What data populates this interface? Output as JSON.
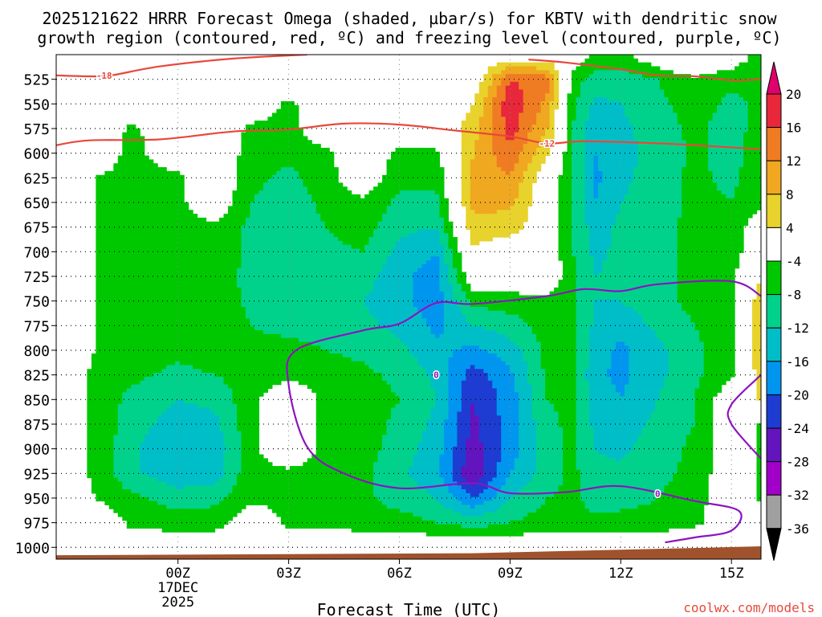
{
  "chart_data": {
    "type": "heatmap",
    "title": {
      "line1": "2025121622 HRRR Forecast Omega (shaded, µbar/s) for KBTV with dendritic snow",
      "line2": "growth region (contoured, red, ºC) and freezing level (contoured, purple, ºC)"
    },
    "xlabel": "Forecast Time (UTC)",
    "credit": "coolwx.com/models",
    "x_axis": {
      "range_hours": [
        -3.3,
        15.8
      ],
      "ticks": [
        {
          "hour": 0,
          "label": "00Z",
          "sub1": "17DEC",
          "sub2": "2025"
        },
        {
          "hour": 3,
          "label": "03Z"
        },
        {
          "hour": 6,
          "label": "06Z"
        },
        {
          "hour": 9,
          "label": "09Z"
        },
        {
          "hour": 12,
          "label": "12Z"
        },
        {
          "hour": 15,
          "label": "15Z"
        }
      ]
    },
    "y_axis": {
      "range_hpa": [
        500,
        1012
      ],
      "levels": [
        525,
        550,
        575,
        600,
        625,
        650,
        675,
        700,
        725,
        750,
        775,
        800,
        825,
        850,
        875,
        900,
        925,
        950,
        975,
        1000
      ]
    },
    "colorbar": {
      "labels": [
        20,
        16,
        12,
        8,
        4,
        -4,
        -8,
        -12,
        -16,
        -20,
        -24,
        -28,
        -32,
        -36
      ],
      "colors": [
        "#e0006e",
        "#e8283a",
        "#ef7c22",
        "#f0a820",
        "#e8d22c",
        "#ffffff",
        "#00c800",
        "#00d28c",
        "#00bec8",
        "#0096f0",
        "#1e3cd2",
        "#6414be",
        "#a000c8",
        "#a0a0a0",
        "#000000"
      ]
    },
    "omega_pressure_levels_hpa": [
      500,
      525,
      550,
      575,
      600,
      625,
      650,
      675,
      700,
      725,
      750,
      775,
      800,
      825,
      850,
      875,
      900,
      925,
      950,
      975,
      1000
    ],
    "omega_columns": [
      {
        "hour": -3.3,
        "values": [
          0,
          0,
          0,
          0,
          0,
          0,
          0,
          0,
          0,
          0,
          0,
          0,
          0,
          0,
          0,
          0,
          0,
          0,
          0,
          0,
          0
        ]
      },
      {
        "hour": -2.0,
        "values": [
          0,
          0,
          0,
          0,
          0,
          -5,
          -5,
          -5,
          -5,
          -5,
          -5,
          -5,
          -5,
          -6,
          -6,
          -6,
          -6,
          -6,
          -5,
          0,
          0
        ]
      },
      {
        "hour": -1.3,
        "values": [
          0,
          0,
          0,
          -5,
          -6,
          -6,
          -6,
          -6,
          -6,
          -6,
          -6,
          -6,
          -6,
          -7,
          -9,
          -10,
          -11,
          -11,
          -7,
          -5,
          0
        ]
      },
      {
        "hour": 0.0,
        "values": [
          0,
          0,
          0,
          0,
          0,
          -5,
          -5,
          -6,
          -6,
          -6,
          -6,
          -6,
          -7,
          -9,
          -12,
          -14,
          -16,
          -15,
          -10,
          -6,
          0
        ]
      },
      {
        "hour": 1.0,
        "values": [
          0,
          0,
          0,
          0,
          0,
          0,
          0,
          -5,
          -5,
          -5,
          -5,
          -6,
          -6,
          -8,
          -11,
          -13,
          -15,
          -14,
          -9,
          -6,
          0
        ]
      },
      {
        "hour": 2.0,
        "values": [
          0,
          0,
          0,
          -5,
          -6,
          -7,
          -8,
          -9,
          -9,
          -10,
          -9,
          -8,
          -7,
          -6,
          -5,
          -5,
          -5,
          -5,
          -5,
          0,
          0
        ]
      },
      {
        "hour": 3.0,
        "values": [
          0,
          0,
          -5,
          -6,
          -7,
          -9,
          -10,
          -11,
          -12,
          -12,
          -11,
          -9,
          -7,
          -5,
          0,
          0,
          0,
          -5,
          -5,
          -5,
          0
        ]
      },
      {
        "hour": 4.0,
        "values": [
          0,
          0,
          0,
          0,
          -5,
          -6,
          -7,
          -8,
          -9,
          -10,
          -10,
          -9,
          -8,
          -6,
          -5,
          -5,
          -5,
          -6,
          -6,
          -5,
          0
        ]
      },
      {
        "hour": 5.0,
        "values": [
          0,
          0,
          0,
          0,
          0,
          0,
          -5,
          -6,
          -8,
          -10,
          -12,
          -11,
          -9,
          -7,
          -6,
          -6,
          -6,
          -7,
          -7,
          -6,
          0
        ]
      },
      {
        "hour": 6.0,
        "values": [
          0,
          0,
          0,
          0,
          -5,
          -7,
          -9,
          -11,
          -13,
          -15,
          -15,
          -13,
          -11,
          -9,
          -8,
          -9,
          -10,
          -11,
          -10,
          -6,
          0
        ]
      },
      {
        "hour": 7.0,
        "values": [
          0,
          0,
          0,
          0,
          -5,
          -7,
          -9,
          -12,
          -16,
          -18,
          -18,
          -17,
          -15,
          -13,
          -12,
          -13,
          -14,
          -15,
          -12,
          -8,
          0
        ]
      },
      {
        "hour": 8.0,
        "values": [
          0,
          0,
          4,
          6,
          8,
          9,
          9,
          7,
          3,
          0,
          -7,
          -12,
          -17,
          -22,
          -24,
          -25,
          -26,
          -28,
          -20,
          -10,
          0
        ]
      },
      {
        "hour": 9.0,
        "values": [
          0,
          16,
          19,
          18,
          15,
          12,
          9,
          6,
          0,
          0,
          -6,
          -10,
          -14,
          -17,
          -18,
          -18,
          -18,
          -16,
          -12,
          -8,
          0
        ]
      },
      {
        "hour": 10.0,
        "values": [
          0,
          14,
          11,
          8,
          5,
          0,
          0,
          0,
          0,
          0,
          -5,
          -6,
          -7,
          -7,
          -8,
          -9,
          -10,
          -10,
          -8,
          -6,
          0
        ]
      },
      {
        "hour": 10.7,
        "values": [
          0,
          -6,
          -7,
          -8,
          -8,
          -8,
          -8,
          -8,
          -8,
          -7,
          -7,
          -7,
          -7,
          -7,
          -7,
          -7,
          -7,
          -7,
          -7,
          -6,
          0
        ]
      },
      {
        "hour": 11.3,
        "values": [
          -5,
          -10,
          -13,
          -15,
          -16,
          -17,
          -16,
          -14,
          -13,
          -12,
          -12,
          -13,
          -14,
          -15,
          -14,
          -13,
          -12,
          -11,
          -10,
          -7,
          0
        ]
      },
      {
        "hour": 12.0,
        "values": [
          -5,
          -10,
          -12,
          -13,
          -13,
          -13,
          -12,
          -11,
          -11,
          -11,
          -12,
          -15,
          -17,
          -17,
          -16,
          -14,
          -13,
          -11,
          -10,
          -6,
          0
        ]
      },
      {
        "hour": 13.0,
        "values": [
          0,
          -8,
          -9,
          -10,
          -11,
          -10,
          -10,
          -9,
          -9,
          -9,
          -9,
          -11,
          -13,
          -13,
          -12,
          -11,
          -10,
          -9,
          -8,
          -6,
          0
        ]
      },
      {
        "hour": 14.0,
        "values": [
          5,
          -5,
          -6,
          -7,
          -7,
          -7,
          -7,
          -7,
          -7,
          -7,
          -7,
          -8,
          -9,
          -9,
          -8,
          -8,
          -7,
          -7,
          -6,
          -5,
          0
        ]
      },
      {
        "hour": 15.0,
        "values": [
          0,
          -7,
          -9,
          -10,
          -10,
          -9,
          -8,
          -7,
          -6,
          -5,
          -5,
          -5,
          -5,
          -5,
          0,
          0,
          0,
          0,
          0,
          0,
          0
        ]
      },
      {
        "hour": 15.8,
        "values": [
          -6,
          -8,
          -7,
          -6,
          -5,
          -5,
          -5,
          0,
          0,
          4,
          7,
          9,
          9,
          6,
          5,
          -5,
          -5,
          -5,
          -5,
          0,
          0
        ]
      }
    ],
    "temperature_contours": [
      {
        "label": "-18",
        "color": "#e8483a",
        "label_hour": -2.0,
        "points": [
          [
            -3.3,
            521
          ],
          [
            -2.4,
            522
          ],
          [
            -1.8,
            521
          ],
          [
            -0.5,
            512
          ],
          [
            1.5,
            504
          ],
          [
            3.5,
            500
          ]
        ]
      },
      {
        "label": "-18",
        "color": "#e8483a",
        "label_hour": null,
        "points": [
          [
            9.5,
            505
          ],
          [
            10.5,
            508
          ],
          [
            12.0,
            515
          ],
          [
            13.0,
            521
          ],
          [
            14.0,
            522
          ],
          [
            15.0,
            526
          ],
          [
            15.8,
            525
          ]
        ]
      },
      {
        "label": "-12",
        "color": "#e8483a",
        "label_hour": 10.0,
        "points": [
          [
            -3.3,
            592
          ],
          [
            -2.4,
            587
          ],
          [
            -0.5,
            586
          ],
          [
            1.5,
            578
          ],
          [
            3.0,
            576
          ],
          [
            4.5,
            570
          ],
          [
            6.0,
            571
          ],
          [
            7.5,
            577
          ],
          [
            9.0,
            583
          ],
          [
            10.0,
            590
          ],
          [
            11.0,
            588
          ],
          [
            13.0,
            590
          ],
          [
            14.5,
            593
          ],
          [
            15.8,
            596
          ]
        ]
      },
      {
        "label": "0",
        "color": "#8c14be",
        "label_hour": 7.0,
        "points": [
          [
            15.8,
            825
          ],
          [
            15.0,
            855
          ],
          [
            15.0,
            875
          ],
          [
            15.8,
            910
          ]
        ]
      },
      {
        "label": "0",
        "color": "#8c14be",
        "label_hour": 13.0,
        "points": [
          [
            13.2,
            995
          ],
          [
            14.0,
            990
          ],
          [
            15.0,
            983
          ],
          [
            15.2,
            963
          ],
          [
            14.0,
            953
          ],
          [
            12.0,
            938
          ],
          [
            10.5,
            944
          ],
          [
            9.0,
            945
          ],
          [
            8.0,
            935
          ],
          [
            6.0,
            940
          ],
          [
            4.5,
            925
          ],
          [
            3.5,
            898
          ],
          [
            3.0,
            835
          ],
          [
            3.2,
            800
          ],
          [
            5.0,
            780
          ],
          [
            6.0,
            773
          ],
          [
            7.0,
            752
          ],
          [
            8.0,
            753
          ],
          [
            10.0,
            745
          ],
          [
            11.0,
            738
          ],
          [
            12.0,
            740
          ],
          [
            13.0,
            733
          ],
          [
            15.0,
            730
          ],
          [
            15.8,
            745
          ]
        ]
      }
    ]
  }
}
